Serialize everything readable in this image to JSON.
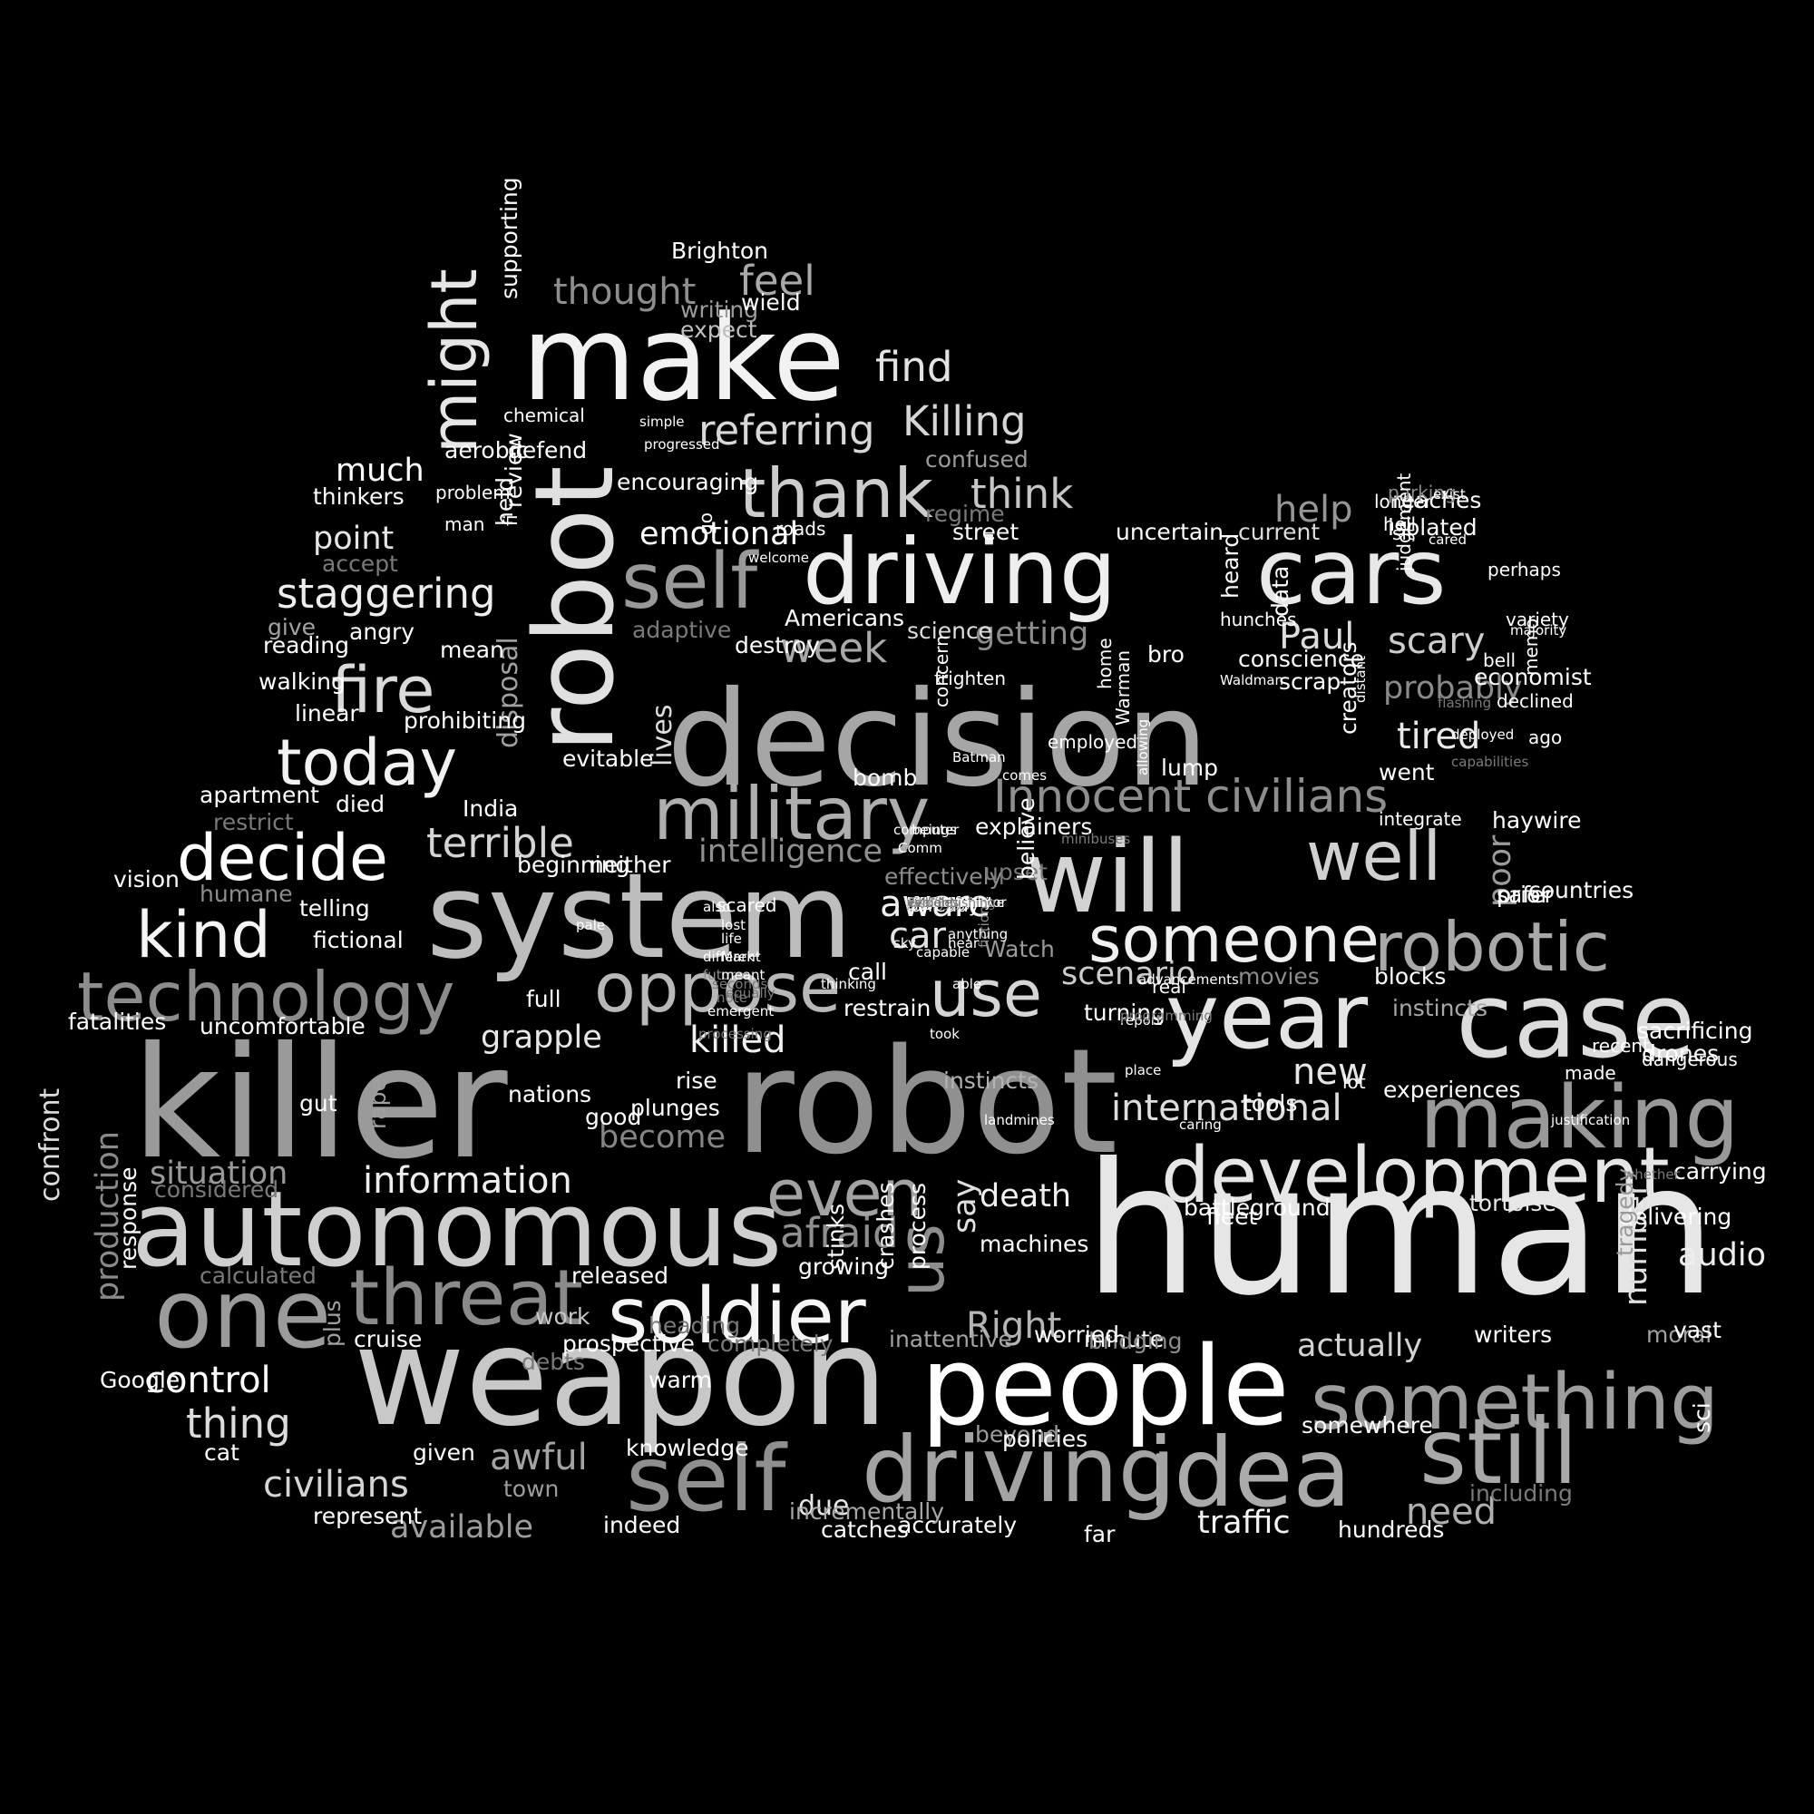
{
  "words": [
    {
      "t": "human",
      "c": "#e6e6e6"
    },
    {
      "t": "killer",
      "c": "#9a9a9a"
    },
    {
      "t": "robot",
      "c": "#909090"
    },
    {
      "t": "weapon",
      "c": "#c8c8c8"
    },
    {
      "t": "system",
      "c": "#bdbdbd"
    },
    {
      "t": "decision",
      "c": "#a6a6a6"
    },
    {
      "t": "make",
      "c": "#f2f2f2"
    },
    {
      "t": "robot",
      "c": "#e0e0e0"
    },
    {
      "t": "people",
      "c": "#ffffff"
    },
    {
      "t": "autonomous",
      "c": "#cfcfcf"
    },
    {
      "t": "driving",
      "c": "#eeeeee"
    },
    {
      "t": "cars",
      "c": "#e8e8e8"
    },
    {
      "t": "case",
      "c": "#dcdcdc"
    },
    {
      "t": "idea",
      "c": "#aaaaaa"
    },
    {
      "t": "will",
      "c": "#d3d3d3"
    },
    {
      "t": "year",
      "c": "#e4e4e4"
    },
    {
      "t": "making",
      "c": "#999999"
    },
    {
      "t": "development",
      "c": "#e6e6e6"
    },
    {
      "t": "something",
      "c": "#9d9d9d"
    },
    {
      "t": "driving",
      "c": "#a3a3a3"
    },
    {
      "t": "self",
      "c": "#8f8f8f"
    },
    {
      "t": "still",
      "c": "#a9a9a9"
    },
    {
      "t": "soldier",
      "c": "#f5f5f5"
    },
    {
      "t": "one",
      "c": "#9b9b9b"
    },
    {
      "t": "threat",
      "c": "#8a8a8a"
    },
    {
      "t": "technology",
      "c": "#8c8c8c"
    },
    {
      "t": "robotic",
      "c": "#a8a8a8"
    },
    {
      "t": "oppose",
      "c": "#b8b8b8"
    },
    {
      "t": "someone",
      "c": "#f0f0f0"
    },
    {
      "t": "military",
      "c": "#aeaeae"
    },
    {
      "t": "thank",
      "c": "#cccccc"
    },
    {
      "t": "self",
      "c": "#999999"
    },
    {
      "t": "decide",
      "c": "#ffffff"
    },
    {
      "t": "kind",
      "c": "#f5f5f5"
    },
    {
      "t": "today",
      "c": "#f2f2f2"
    },
    {
      "t": "fire",
      "c": "#dadada"
    },
    {
      "t": "might",
      "c": "#e6e6e6"
    },
    {
      "t": "Innocent civilians",
      "c": "#8e8e8e"
    },
    {
      "t": "well",
      "c": "#d0d0d0"
    },
    {
      "t": "use",
      "c": "#d5d5d5"
    },
    {
      "t": "us",
      "c": "#8d8d8d"
    },
    {
      "t": "even",
      "c": "#a2a2a2"
    },
    {
      "t": "referring",
      "c": "#d8d8d8"
    },
    {
      "t": "Killing",
      "c": "#d6d6d6"
    },
    {
      "t": "find",
      "c": "#e3e3e3"
    },
    {
      "t": "feel",
      "c": "#a9a9a9"
    },
    {
      "t": "thought",
      "c": "#8e8e8e"
    },
    {
      "t": "think",
      "c": "#c6c6c6"
    },
    {
      "t": "staggering",
      "c": "#eeeeee"
    },
    {
      "t": "terrible",
      "c": "#d4d4d4"
    },
    {
      "t": "afraid",
      "c": "#8f8f8f"
    },
    {
      "t": "week",
      "c": "#a8a8a8"
    },
    {
      "t": "information",
      "c": "#eeeeee"
    },
    {
      "t": "control",
      "c": "#ffffff"
    },
    {
      "t": "thing",
      "c": "#dcdcdc"
    },
    {
      "t": "civilians",
      "c": "#d4d4d4"
    },
    {
      "t": "awful",
      "c": "#a3a3a3"
    },
    {
      "t": "available",
      "c": "#9c9c9c"
    },
    {
      "t": "grapple",
      "c": "#e8e8e8"
    },
    {
      "t": "killed",
      "c": "#f0f0f0"
    },
    {
      "t": "become",
      "c": "#858585"
    },
    {
      "t": "situation",
      "c": "#9a9a9a"
    },
    {
      "t": "production",
      "c": "#8a8a8a"
    },
    {
      "t": "confront",
      "c": "#dddddd"
    },
    {
      "t": "international",
      "c": "#dedede"
    },
    {
      "t": "new",
      "c": "#e6e6e6"
    },
    {
      "t": "scenario",
      "c": "#cccccc"
    },
    {
      "t": "aware",
      "c": "#f0f0f0"
    },
    {
      "t": "car",
      "c": "#e3e3e3"
    },
    {
      "t": "Paul",
      "c": "#dddddd"
    },
    {
      "t": "scary",
      "c": "#cdcdcd"
    },
    {
      "t": "probably",
      "c": "#8a8a8a"
    },
    {
      "t": "tired",
      "c": "#e8e8e8"
    },
    {
      "t": "help",
      "c": "#969696"
    },
    {
      "t": "emotional",
      "c": "#ffffff"
    },
    {
      "t": "getting",
      "c": "#8c8c8c"
    },
    {
      "t": "intelligence",
      "c": "#8f8f8f"
    },
    {
      "t": "death",
      "c": "#f0f0f0"
    },
    {
      "t": "say",
      "c": "#e0e0e0"
    },
    {
      "t": "need",
      "c": "#b0b0b0"
    },
    {
      "t": "traffic",
      "c": "#f5f5f5"
    },
    {
      "t": "actually",
      "c": "#d2d2d2"
    },
    {
      "t": "Right",
      "c": "#b5b5b5"
    },
    {
      "t": "poor",
      "c": "#9c9c9c"
    },
    {
      "t": "number",
      "c": "#e0e0e0"
    },
    {
      "t": "audio",
      "c": "#eeeeee"
    },
    {
      "t": "much",
      "c": "#ffffff"
    },
    {
      "t": "point",
      "c": "#e6e6e6"
    },
    {
      "t": "lives",
      "c": "#dcdcdc"
    },
    {
      "t": "disposal",
      "c": "#a0a0a0"
    },
    {
      "t": "due",
      "c": "#e6e6e6"
    },
    {
      "t": "rise",
      "c": "#ffffff"
    },
    {
      "t": "plunges",
      "c": "#ffffff"
    },
    {
      "t": "explainers",
      "c": "#ffffff"
    },
    {
      "t": "tortoise",
      "c": "#e8e8e8"
    },
    {
      "t": "delivering",
      "c": "#ffffff"
    },
    {
      "t": "carrying",
      "c": "#ffffff"
    },
    {
      "t": "battleground",
      "c": "#ffffff"
    },
    {
      "t": "instincts",
      "c": "#b2b2b2"
    },
    {
      "t": "confused",
      "c": "#9c9c9c"
    },
    {
      "t": "uncomfortable",
      "c": "#ffffff"
    },
    {
      "t": "fictional",
      "c": "#ffffff"
    },
    {
      "t": "apartment",
      "c": "#ffffff"
    },
    {
      "t": "died",
      "c": "#ffffff"
    },
    {
      "t": "writers",
      "c": "#ffffff"
    },
    {
      "t": "tragedy",
      "c": "#9a9a9a"
    },
    {
      "t": "machines",
      "c": "#ffffff"
    },
    {
      "t": "telling",
      "c": "#ffffff"
    },
    {
      "t": "fleet",
      "c": "#ffffff"
    },
    {
      "t": "growing",
      "c": "#ffffff"
    },
    {
      "t": "work",
      "c": "#c6c6c6"
    },
    {
      "t": "cruise",
      "c": "#ffffff"
    },
    {
      "t": "represent",
      "c": "#ffffff"
    },
    {
      "t": "moral",
      "c": "#a0a0a0"
    },
    {
      "t": "vast",
      "c": "#ffffff"
    },
    {
      "t": "give",
      "c": "#a3a3a3"
    },
    {
      "t": "angry",
      "c": "#ffffff"
    },
    {
      "t": "thinkers",
      "c": "#ffffff"
    },
    {
      "t": "accept",
      "c": "#7a7a7a"
    },
    {
      "t": "adaptive",
      "c": "#7a7a7a"
    },
    {
      "t": "science",
      "c": "#dddddd"
    },
    {
      "t": "heard",
      "c": "#ffffff"
    },
    {
      "t": "current",
      "c": "#dddddd"
    },
    {
      "t": "creators",
      "c": "#ffffff"
    },
    {
      "t": "bomb",
      "c": "#ffffff"
    },
    {
      "t": "evitable",
      "c": "#ffffff"
    },
    {
      "t": "response",
      "c": "#ffffff"
    },
    {
      "t": "prohibiting",
      "c": "#ffffff"
    },
    {
      "t": "linear",
      "c": "#ffffff"
    },
    {
      "t": "gut",
      "c": "#ffffff"
    },
    {
      "t": "rape",
      "c": "#a0a0a0"
    },
    {
      "t": "turning",
      "c": "#ffffff"
    },
    {
      "t": "instincts",
      "c": "#a8a8a8"
    },
    {
      "t": "blocks",
      "c": "#ffffff"
    },
    {
      "t": "bro",
      "c": "#ffffff"
    },
    {
      "t": "full",
      "c": "#ffffff"
    },
    {
      "t": "Watch",
      "c": "#9a9a9a"
    },
    {
      "t": "call",
      "c": "#ffffff"
    },
    {
      "t": "tools",
      "c": "#ffffff"
    },
    {
      "t": "movies",
      "c": "#8c8c8c"
    },
    {
      "t": "cat",
      "c": "#ffffff"
    },
    {
      "t": "town",
      "c": "#9c9c9c"
    },
    {
      "t": "minute",
      "c": "#ffffff"
    },
    {
      "t": "somewhere",
      "c": "#ffffff"
    },
    {
      "t": "beyond",
      "c": "#9c9c9c"
    },
    {
      "t": "including",
      "c": "#7a7a7a"
    },
    {
      "t": "chemical",
      "c": "#ffffff"
    },
    {
      "t": "defend",
      "c": "#ffffff"
    },
    {
      "t": "encouraging",
      "c": "#ffffff"
    },
    {
      "t": "street",
      "c": "#ffffff"
    },
    {
      "t": "Brighton",
      "c": "#ffffff"
    },
    {
      "t": "writing",
      "c": "#9c9c9c"
    },
    {
      "t": "expect",
      "c": "#c0c0c0"
    },
    {
      "t": "wield",
      "c": "#ffffff"
    },
    {
      "t": "restrain",
      "c": "#ffffff"
    },
    {
      "t": "accurately",
      "c": "#ffffff"
    },
    {
      "t": "indeed",
      "c": "#ffffff"
    },
    {
      "t": "incrementally",
      "c": "#a8a8a8"
    },
    {
      "t": "inattentive",
      "c": "#a3a3a3"
    },
    {
      "t": "plus",
      "c": "#a0a0a0"
    },
    {
      "t": "mean",
      "c": "#ffffff"
    },
    {
      "t": "supporting",
      "c": "#ffffff"
    },
    {
      "t": "countries",
      "c": "#ffffff"
    },
    {
      "t": "safer",
      "c": "#ffffff"
    },
    {
      "t": "prior",
      "c": "#ffffff"
    },
    {
      "t": "haywire",
      "c": "#ffffff"
    },
    {
      "t": "lump",
      "c": "#ffffff"
    },
    {
      "t": "bridging",
      "c": "#8c8c8c"
    },
    {
      "t": "worried",
      "c": "#ffffff"
    },
    {
      "t": "Google",
      "c": "#ffffff"
    },
    {
      "t": "stinks",
      "c": "#ffffff"
    },
    {
      "t": "crashes",
      "c": "#ffffff"
    },
    {
      "t": "process",
      "c": "#ffffff"
    },
    {
      "t": "knowledge",
      "c": "#ffffff"
    },
    {
      "t": "given",
      "c": "#ffffff"
    },
    {
      "t": "policies",
      "c": "#ffffff"
    },
    {
      "t": "catches",
      "c": "#ffffff"
    },
    {
      "t": "far",
      "c": "#ffffff"
    },
    {
      "t": "hundreds",
      "c": "#ffffff"
    },
    {
      "t": "released",
      "c": "#ffffff"
    },
    {
      "t": "prospective",
      "c": "#ffffff"
    },
    {
      "t": "completely",
      "c": "#7a7a7a"
    },
    {
      "t": "fatalities",
      "c": "#ffffff"
    },
    {
      "t": "considered",
      "c": "#7a7a7a"
    },
    {
      "t": "calculated",
      "c": "#7a7a7a"
    },
    {
      "t": "walking",
      "c": "#ffffff"
    },
    {
      "t": "reading",
      "c": "#ffffff"
    },
    {
      "t": "effectively",
      "c": "#8c8c8c"
    },
    {
      "t": "India",
      "c": "#ffffff"
    },
    {
      "t": "beginning",
      "c": "#ffffff"
    },
    {
      "t": "neither",
      "c": "#ffffff"
    },
    {
      "t": "vision",
      "c": "#ffffff"
    },
    {
      "t": "humane",
      "c": "#8c8c8c"
    },
    {
      "t": "restrict",
      "c": "#7a7a7a"
    },
    {
      "t": "heading",
      "c": "#7a7a7a"
    },
    {
      "t": "dangerous",
      "c": "#ffffff"
    },
    {
      "t": "drones",
      "c": "#ffffff"
    },
    {
      "t": "sacrificing",
      "c": "#ffffff"
    },
    {
      "t": "hunches",
      "c": "#ffffff"
    },
    {
      "t": "data",
      "c": "#ffffff"
    },
    {
      "t": "conscience",
      "c": "#ffffff"
    },
    {
      "t": "went",
      "c": "#ffffff"
    },
    {
      "t": "isolated",
      "c": "#ffffff"
    },
    {
      "t": "reaches",
      "c": "#ffffff"
    },
    {
      "t": "longer",
      "c": "#ffffff"
    },
    {
      "t": "review",
      "c": "#ffffff"
    },
    {
      "t": "fi",
      "c": "#ffffff"
    },
    {
      "t": "sci",
      "c": "#ffffff"
    },
    {
      "t": "hell",
      "c": "#ffffff"
    },
    {
      "t": "sit",
      "c": "#ffffff"
    },
    {
      "t": "held",
      "c": "#ffffff"
    },
    {
      "t": "upset",
      "c": "#7a7a7a"
    },
    {
      "t": "believe",
      "c": "#ffffff"
    },
    {
      "t": "concern",
      "c": "#ffffff"
    },
    {
      "t": "frighten",
      "c": "#ffffff"
    },
    {
      "t": "economist",
      "c": "#ffffff"
    },
    {
      "t": "parking",
      "c": "#8c8c8c"
    },
    {
      "t": "Warman",
      "c": "#ffffff"
    },
    {
      "t": "scrap",
      "c": "#ffffff"
    },
    {
      "t": "lot",
      "c": "#ffffff"
    },
    {
      "t": "recent",
      "c": "#ffffff"
    },
    {
      "t": "roads",
      "c": "#ffffff"
    },
    {
      "t": "regime",
      "c": "#7a7a7a"
    },
    {
      "t": "uncertain",
      "c": "#ffffff"
    },
    {
      "t": "warm",
      "c": "#ffffff"
    },
    {
      "t": "Americans",
      "c": "#ffffff"
    },
    {
      "t": "destroy",
      "c": "#ffffff"
    },
    {
      "t": "go",
      "c": "#ffffff"
    },
    {
      "t": "nations",
      "c": "#ffffff"
    },
    {
      "t": "good",
      "c": "#ffffff"
    },
    {
      "t": "debts",
      "c": "#7a7a7a"
    },
    {
      "t": "man",
      "c": "#ffffff"
    },
    {
      "t": "aerobic",
      "c": "#ffffff"
    },
    {
      "t": "problem",
      "c": "#ffffff"
    },
    {
      "t": "already",
      "c": "#ffffff"
    },
    {
      "t": "memo",
      "c": "#ffffff"
    },
    {
      "t": "ago",
      "c": "#ffffff"
    },
    {
      "t": "bell",
      "c": "#ffffff"
    },
    {
      "t": "declined",
      "c": "#ffffff"
    },
    {
      "t": "made",
      "c": "#ffffff"
    },
    {
      "t": "experiences",
      "c": "#ffffff"
    },
    {
      "t": "integrate",
      "c": "#ffffff"
    },
    {
      "t": "distant",
      "c": "#ffffff"
    },
    {
      "t": "deployed",
      "c": "#ffffff"
    },
    {
      "t": "flashing",
      "c": "#7a7a7a"
    },
    {
      "t": "capabilities",
      "c": "#7a7a7a"
    },
    {
      "t": "perhaps",
      "c": "#ffffff"
    },
    {
      "t": "variety",
      "c": "#ffffff"
    },
    {
      "t": "exist",
      "c": "#ffffff"
    },
    {
      "t": "cared",
      "c": "#ffffff"
    },
    {
      "t": "judgement",
      "c": "#ffffff"
    },
    {
      "t": "majority",
      "c": "#ffffff"
    },
    {
      "t": "justification",
      "c": "#ffffff"
    },
    {
      "t": "whether",
      "c": "#7a7a7a"
    },
    {
      "t": "Waldman",
      "c": "#ffffff"
    },
    {
      "t": "allowing",
      "c": "#ffffff"
    },
    {
      "t": "home",
      "c": "#ffffff"
    },
    {
      "t": "employed",
      "c": "#ffffff"
    },
    {
      "t": "Batman",
      "c": "#ffffff"
    },
    {
      "t": "computer",
      "c": "#ffffff"
    },
    {
      "t": "Comm",
      "c": "#ffffff"
    },
    {
      "t": "beings",
      "c": "#ffffff"
    },
    {
      "t": "terminator",
      "c": "#ffffff"
    },
    {
      "t": "minibuses",
      "c": "#7a7a7a"
    },
    {
      "t": "real",
      "c": "#ffffff"
    },
    {
      "t": "report",
      "c": "#ffffff"
    },
    {
      "t": "thinking",
      "c": "#ffffff"
    },
    {
      "t": "caring",
      "c": "#ffffff"
    },
    {
      "t": "able",
      "c": "#ffffff"
    },
    {
      "t": "took",
      "c": "#ffffff"
    },
    {
      "t": "place",
      "c": "#ffffff"
    },
    {
      "t": "programming",
      "c": "#7a7a7a"
    },
    {
      "t": "advancements",
      "c": "#ffffff"
    },
    {
      "t": "fiction",
      "c": "#8c8c8c"
    },
    {
      "t": "capable",
      "c": "#ffffff"
    },
    {
      "t": "anything",
      "c": "#ffffff"
    },
    {
      "t": "comes",
      "c": "#ffffff"
    },
    {
      "t": "welcome",
      "c": "#ffffff"
    },
    {
      "t": "simple",
      "c": "#ffffff"
    },
    {
      "t": "progressed",
      "c": "#ffffff"
    },
    {
      "t": "landmines",
      "c": "#ffffff"
    },
    {
      "t": "life",
      "c": "#ffffff"
    },
    {
      "t": "hear",
      "c": "#ffffff"
    },
    {
      "t": "sky",
      "c": "#ffffff"
    },
    {
      "t": "scared",
      "c": "#ffffff"
    },
    {
      "t": "also",
      "c": "#ffffff"
    },
    {
      "t": "pale",
      "c": "#ffffff"
    },
    {
      "t": "lost",
      "c": "#ffffff"
    },
    {
      "t": "note",
      "c": "#7a7a7a"
    },
    {
      "t": "future",
      "c": "#8c8c8c"
    },
    {
      "t": "different",
      "c": "#ffffff"
    },
    {
      "t": "seconds",
      "c": "#7a7a7a"
    },
    {
      "t": "Mark",
      "c": "#ffffff"
    },
    {
      "t": "meant",
      "c": "#ffffff"
    },
    {
      "t": "equally",
      "c": "#7a7a7a"
    },
    {
      "t": "emergent",
      "c": "#ffffff"
    },
    {
      "t": "processing",
      "c": "#7a7a7a"
    },
    {
      "t": "empathy",
      "c": "#ffffff"
    },
    {
      "t": "alternative",
      "c": "#7a7a7a"
    },
    {
      "t": "episode",
      "c": "#ffffff"
    },
    {
      "t": "comprehensive",
      "c": "#ffffff"
    },
    {
      "t": "provoking",
      "c": "#ffffff"
    },
    {
      "t": "accountable",
      "c": "#ffffff"
    },
    {
      "t": "qualities",
      "c": "#ffffff"
    },
    {
      "t": "podcast",
      "c": "#ffffff"
    },
    {
      "t": "jacket",
      "c": "#7a7a7a"
    },
    {
      "t": "Simon",
      "c": "#ffffff"
    },
    {
      "t": "sophisticated",
      "c": "#ffffff"
    },
    {
      "t": "around",
      "c": "#ffffff"
    },
    {
      "t": "way",
      "c": "#ffffff"
    },
    {
      "t": "another",
      "c": "#ffffff"
    },
    {
      "t": "Dominator",
      "c": "#ffffff"
    },
    {
      "t": "clarify",
      "c": "#9c9c9c"
    },
    {
      "t": "seem",
      "c": "#ffffff"
    },
    {
      "t": "comparison",
      "c": "#ffffff"
    },
    {
      "t": "single",
      "c": "#ffffff"
    },
    {
      "t": "commercially",
      "c": "#ffffff"
    },
    {
      "t": "mistakes",
      "c": "#ffffff"
    },
    {
      "t": "see",
      "c": "#8c8c8c"
    },
    {
      "t": "apocalyptic",
      "c": "#ffffff"
    },
    {
      "t": "opinions",
      "c": "#ffffff"
    },
    {
      "t": "gotten",
      "c": "#ffffff"
    },
    {
      "t": "wielding",
      "c": "#ffffff"
    },
    {
      "t": "Cliff",
      "c": "#ffffff"
    },
    {
      "t": "shot",
      "c": "#7a7a7a"
    },
    {
      "t": "senses",
      "c": "#7a7a7a"
    },
    {
      "t": "avoid",
      "c": "#7a7a7a"
    },
    {
      "t": "result",
      "c": "#7a7a7a"
    },
    {
      "t": "ignore",
      "c": "#ffffff"
    },
    {
      "t": "iTunes",
      "c": "#ffffff"
    },
    {
      "t": "guide",
      "c": "#ffffff"
    },
    {
      "t": "artificial",
      "c": "#8c8c8c"
    },
    {
      "t": "boundaries",
      "c": "#ffffff"
    },
    {
      "t": "surface",
      "c": "#7a7a7a"
    },
    {
      "t": "listening",
      "c": "#7a7a7a"
    },
    {
      "t": "graded",
      "c": "#ffffff"
    },
    {
      "t": "official",
      "c": "#ffffff"
    },
    {
      "t": "humanity",
      "c": "#ffffff"
    },
    {
      "t": "matter",
      "c": "#7a7a7a"
    },
    {
      "t": "less",
      "c": "#ffffff"
    },
    {
      "t": "world",
      "c": "#7a7a7a"
    },
    {
      "t": "time",
      "c": "#ffffff"
    },
    {
      "t": "arguments",
      "c": "#ffffff"
    },
    {
      "t": "fear",
      "c": "#ffffff"
    },
    {
      "t": "temper",
      "c": "#7a7a7a"
    },
    {
      "t": "moment",
      "c": "#ffffff"
    },
    {
      "t": "distinguishing",
      "c": "#7a7a7a"
    },
    {
      "t": "central",
      "c": "#ffffff"
    },
    {
      "t": "Eva",
      "c": "#7a7a7a"
    },
    {
      "t": "hello",
      "c": "#ffffff"
    },
    {
      "t": "vehicles",
      "c": "#7a7a7a"
    },
    {
      "t": "evident",
      "c": "#7a7a7a"
    }
  ]
}
